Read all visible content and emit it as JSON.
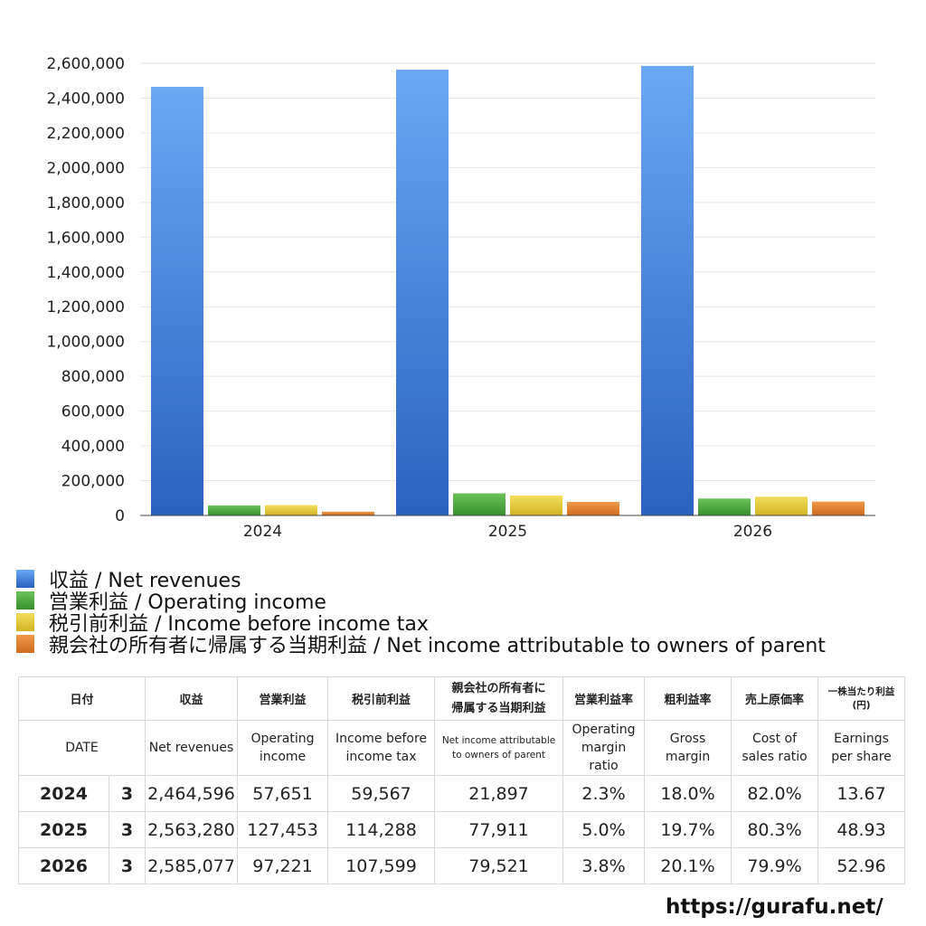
{
  "chart_data": {
    "type": "bar",
    "categories": [
      "2024",
      "2025",
      "2026"
    ],
    "ylim": [
      0,
      2600000
    ],
    "yticks": [
      0,
      200000,
      400000,
      600000,
      800000,
      1000000,
      1200000,
      1400000,
      1600000,
      1800000,
      2000000,
      2200000,
      2400000,
      2600000
    ],
    "ytick_labels": [
      "0",
      "200,000",
      "400,000",
      "600,000",
      "800,000",
      "1,000,000",
      "1,200,000",
      "1,400,000",
      "1,600,000",
      "1,800,000",
      "2,000,000",
      "2,200,000",
      "2,400,000",
      "2,600,000"
    ],
    "grid": true,
    "legend_position": "bottom",
    "series": [
      {
        "name": "収益 / Net revenues",
        "values": [
          2464596,
          2563280,
          2585077
        ],
        "color": "#4a86e0"
      },
      {
        "name": "営業利益 / Operating income",
        "values": [
          57651,
          127453,
          97221
        ],
        "color": "#4caa3c"
      },
      {
        "name": "税引前利益 / Income before income tax",
        "values": [
          59567,
          114288,
          107599
        ],
        "color": "#e8cd3a"
      },
      {
        "name": "親会社の所有者に帰属する当期利益 / Net income attributable to owners of parent",
        "values": [
          21897,
          77911,
          79521
        ],
        "color": "#e07c2a"
      }
    ]
  },
  "table": {
    "header_jp": [
      "日付",
      "収益",
      "営業利益",
      "税引前利益",
      "親会社の所有者に",
      "帰属する当期利益",
      "営業利益率",
      "粗利益率",
      "売上原価率",
      "一株当たり利益",
      "(円)"
    ],
    "header_en": {
      "date": "DATE",
      "rev": "Net revenues",
      "op1": "Operating",
      "op2": "income",
      "ibt1": "Income before",
      "ibt2": "income tax",
      "ni1": "Net income attributable",
      "ni2": "to owners of parent",
      "omr1": "Operating",
      "omr2": "margin",
      "omr3": "ratio",
      "gm1": "Gross",
      "gm2": "margin",
      "cs1": "Cost of",
      "cs2": "sales ratio",
      "eps1": "Earnings",
      "eps2": "per share"
    },
    "rows": [
      {
        "year": "2024",
        "month": "3",
        "rev": "2,464,596",
        "op": "57,651",
        "ibt": "59,567",
        "ni": "21,897",
        "omr": "2.3%",
        "gm": "18.0%",
        "cs": "82.0%",
        "eps": "13.67"
      },
      {
        "year": "2025",
        "month": "3",
        "rev": "2,563,280",
        "op": "127,453",
        "ibt": "114,288",
        "ni": "77,911",
        "omr": "5.0%",
        "gm": "19.7%",
        "cs": "80.3%",
        "eps": "48.93"
      },
      {
        "year": "2026",
        "month": "3",
        "rev": "2,585,077",
        "op": "97,221",
        "ibt": "107,599",
        "ni": "79,521",
        "omr": "3.8%",
        "gm": "20.1%",
        "cs": "79.9%",
        "eps": "52.96"
      }
    ]
  },
  "footer": {
    "url": "https://gurafu.net/"
  }
}
